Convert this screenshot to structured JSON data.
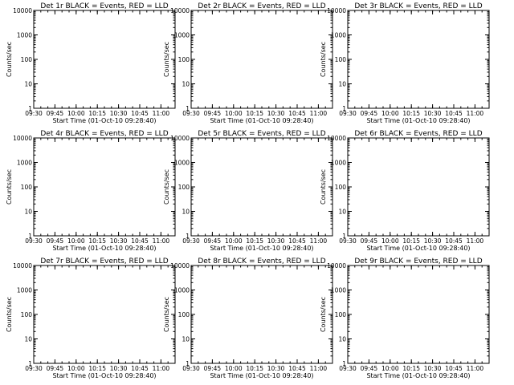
{
  "figure": {
    "time_label": "Start Time (01-Oct-10 09:28:40)",
    "ylabel": "Counts/sec",
    "colors": {
      "events": "#000000",
      "lld": "#ff0000",
      "background": "#ffffff"
    }
  },
  "chart_data": [
    {
      "type": "line",
      "title": "Det 1r  BLACK = Events, RED = LLD",
      "xlabel": "Start Time (01-Oct-10 09:28:40)",
      "ylabel": "Counts/sec",
      "xlim": [
        "09:30",
        "11:10"
      ],
      "ylim": [
        1,
        10000
      ],
      "yscale": "log",
      "x_ticks": [
        "09:30",
        "09:45",
        "10:00",
        "10:15",
        "10:30",
        "10:45",
        "11:00"
      ],
      "y_ticks": [
        "1",
        "10",
        "100",
        "1000",
        "10000"
      ],
      "series": [
        {
          "name": "Events",
          "color": "#000000"
        },
        {
          "name": "LLD",
          "color": "#ff0000"
        }
      ]
    },
    {
      "type": "line",
      "title": "Det 2r  BLACK = Events, RED = LLD",
      "xlabel": "Start Time (01-Oct-10 09:28:40)",
      "ylabel": "Counts/sec",
      "xlim": [
        "09:30",
        "11:10"
      ],
      "ylim": [
        1,
        10000
      ],
      "yscale": "log",
      "x_ticks": [
        "09:30",
        "09:45",
        "10:00",
        "10:15",
        "10:30",
        "10:45",
        "11:00"
      ],
      "y_ticks": [
        "1",
        "10",
        "100",
        "1000",
        "10000"
      ],
      "series": [
        {
          "name": "Events",
          "color": "#000000"
        },
        {
          "name": "LLD",
          "color": "#ff0000"
        }
      ]
    },
    {
      "type": "line",
      "title": "Det 3r  BLACK = Events, RED = LLD",
      "xlabel": "Start Time (01-Oct-10 09:28:40)",
      "ylabel": "Counts/sec",
      "xlim": [
        "09:30",
        "11:10"
      ],
      "ylim": [
        1,
        10000
      ],
      "yscale": "log",
      "x_ticks": [
        "09:30",
        "09:45",
        "10:00",
        "10:15",
        "10:30",
        "10:45",
        "11:00"
      ],
      "y_ticks": [
        "1",
        "10",
        "100",
        "1000",
        "10000"
      ],
      "series": [
        {
          "name": "Events",
          "color": "#000000"
        },
        {
          "name": "LLD",
          "color": "#ff0000"
        }
      ]
    },
    {
      "type": "line",
      "title": "Det 4r  BLACK = Events, RED = LLD",
      "xlabel": "Start Time (01-Oct-10 09:28:40)",
      "ylabel": "Counts/sec",
      "xlim": [
        "09:30",
        "11:10"
      ],
      "ylim": [
        1,
        10000
      ],
      "yscale": "log",
      "x_ticks": [
        "09:30",
        "09:45",
        "10:00",
        "10:15",
        "10:30",
        "10:45",
        "11:00"
      ],
      "y_ticks": [
        "1",
        "10",
        "100",
        "1000",
        "10000"
      ],
      "series": [
        {
          "name": "Events",
          "color": "#000000"
        },
        {
          "name": "LLD",
          "color": "#ff0000"
        }
      ]
    },
    {
      "type": "line",
      "title": "Det 5r  BLACK = Events, RED = LLD",
      "xlabel": "Start Time (01-Oct-10 09:28:40)",
      "ylabel": "Counts/sec",
      "xlim": [
        "09:30",
        "11:10"
      ],
      "ylim": [
        1,
        10000
      ],
      "yscale": "log",
      "x_ticks": [
        "09:30",
        "09:45",
        "10:00",
        "10:15",
        "10:30",
        "10:45",
        "11:00"
      ],
      "y_ticks": [
        "1",
        "10",
        "100",
        "1000",
        "10000"
      ],
      "series": [
        {
          "name": "Events",
          "color": "#000000"
        },
        {
          "name": "LLD",
          "color": "#ff0000"
        }
      ]
    },
    {
      "type": "line",
      "title": "Det 6r  BLACK = Events, RED = LLD",
      "xlabel": "Start Time (01-Oct-10 09:28:40)",
      "ylabel": "Counts/sec",
      "xlim": [
        "09:30",
        "11:10"
      ],
      "ylim": [
        1,
        10000
      ],
      "yscale": "log",
      "x_ticks": [
        "09:30",
        "09:45",
        "10:00",
        "10:15",
        "10:30",
        "10:45",
        "11:00"
      ],
      "y_ticks": [
        "1",
        "10",
        "100",
        "1000",
        "10000"
      ],
      "series": [
        {
          "name": "Events",
          "color": "#000000"
        },
        {
          "name": "LLD",
          "color": "#ff0000"
        }
      ]
    },
    {
      "type": "line",
      "title": "Det 7r  BLACK = Events, RED = LLD",
      "xlabel": "Start Time (01-Oct-10 09:28:40)",
      "ylabel": "Counts/sec",
      "xlim": [
        "09:30",
        "11:10"
      ],
      "ylim": [
        1,
        10000
      ],
      "yscale": "log",
      "x_ticks": [
        "09:30",
        "09:45",
        "10:00",
        "10:15",
        "10:30",
        "10:45",
        "11:00"
      ],
      "y_ticks": [
        "1",
        "10",
        "100",
        "1000",
        "10000"
      ],
      "series": [
        {
          "name": "Events",
          "color": "#000000"
        },
        {
          "name": "LLD",
          "color": "#ff0000"
        }
      ]
    },
    {
      "type": "line",
      "title": "Det 8r  BLACK = Events, RED = LLD",
      "xlabel": "Start Time (01-Oct-10 09:28:40)",
      "ylabel": "Counts/sec",
      "xlim": [
        "09:30",
        "11:10"
      ],
      "ylim": [
        1,
        10000
      ],
      "yscale": "log",
      "x_ticks": [
        "09:30",
        "09:45",
        "10:00",
        "10:15",
        "10:30",
        "10:45",
        "11:00"
      ],
      "y_ticks": [
        "1",
        "10",
        "100",
        "1000",
        "10000"
      ],
      "series": [
        {
          "name": "Events",
          "color": "#000000"
        },
        {
          "name": "LLD",
          "color": "#ff0000"
        }
      ]
    },
    {
      "type": "line",
      "title": "Det 9r  BLACK = Events, RED = LLD",
      "xlabel": "Start Time (01-Oct-10 09:28:40)",
      "ylabel": "Counts/sec",
      "xlim": [
        "09:30",
        "11:10"
      ],
      "ylim": [
        1,
        10000
      ],
      "yscale": "log",
      "x_ticks": [
        "09:30",
        "09:45",
        "10:00",
        "10:15",
        "10:30",
        "10:45",
        "11:00"
      ],
      "y_ticks": [
        "1",
        "10",
        "100",
        "1000",
        "10000"
      ],
      "series": [
        {
          "name": "Events",
          "color": "#000000"
        },
        {
          "name": "LLD",
          "color": "#ff0000"
        }
      ]
    }
  ]
}
